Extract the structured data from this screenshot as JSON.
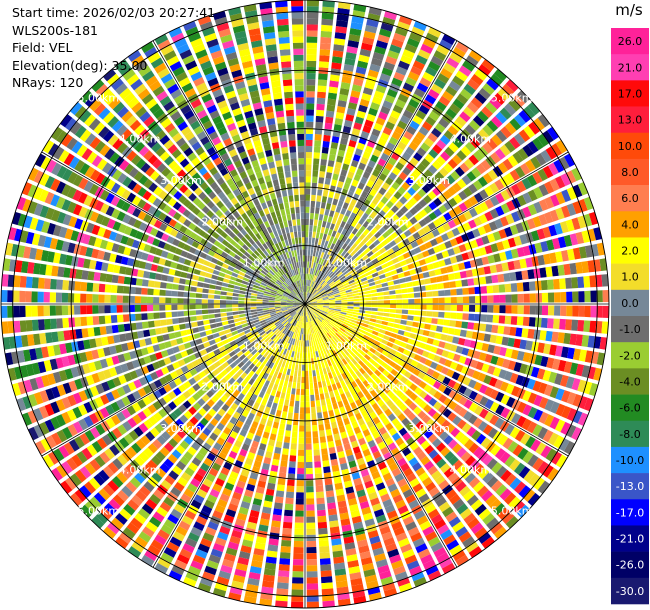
{
  "header": {
    "start_time": "Start time: 2026/02/03 20:27:41",
    "instrument": "WLS200s-181",
    "field": "Field: VEL",
    "elevation": "Elevation(deg): 35.00",
    "nrays": "NRays: 120"
  },
  "chart_data": {
    "type": "heatmap",
    "projection": "polar",
    "title": "",
    "field": "VEL",
    "n_rays": 120,
    "range_rings_km": [
      1.0,
      2.0,
      3.0,
      4.0,
      5.0
    ],
    "ring_labels": [
      "1.00km",
      "2.00km",
      "3.00km",
      "4.00km",
      "5.00km"
    ],
    "max_range_km": 5.2,
    "azimuth_lines_deg": [
      0,
      30,
      60,
      90,
      120,
      150,
      180,
      210,
      240,
      270,
      300,
      330
    ],
    "colorbar": {
      "unit": "m/s",
      "ticks": [
        "26.0",
        "21.0",
        "17.0",
        "13.0",
        "10.0",
        "8.0",
        "6.0",
        "4.0",
        "2.0",
        "1.0",
        "0.0",
        "-1.0",
        "-2.0",
        "-4.0",
        "-6.0",
        "-8.0",
        "-10.0",
        "-13.0",
        "-17.0",
        "-21.0",
        "-26.0",
        "-30.0"
      ],
      "bins": [
        {
          "min": 26,
          "max": 30,
          "color": "#ff2299"
        },
        {
          "min": 21,
          "max": 26,
          "color": "#ff3fb2"
        },
        {
          "min": 17,
          "max": 21,
          "color": "#ff0a0a"
        },
        {
          "min": 13,
          "max": 17,
          "color": "#ff1e3c"
        },
        {
          "min": 10,
          "max": 13,
          "color": "#ff4a0a"
        },
        {
          "min": 8,
          "max": 10,
          "color": "#ff5a28"
        },
        {
          "min": 6,
          "max": 8,
          "color": "#ff7e50"
        },
        {
          "min": 4,
          "max": 6,
          "color": "#ffa000"
        },
        {
          "min": 2,
          "max": 4,
          "color": "#ffff00"
        },
        {
          "min": 1,
          "max": 2,
          "color": "#f3dd2a"
        },
        {
          "min": 0,
          "max": 1,
          "color": "#768898"
        },
        {
          "min": -1,
          "max": 0,
          "color": "#6e6e6e"
        },
        {
          "min": -2,
          "max": -1,
          "color": "#9acd32"
        },
        {
          "min": -4,
          "max": -2,
          "color": "#6b8e23"
        },
        {
          "min": -6,
          "max": -4,
          "color": "#228b22"
        },
        {
          "min": -8,
          "max": -6,
          "color": "#2e8b57"
        },
        {
          "min": -10,
          "max": -8,
          "color": "#1e90ff"
        },
        {
          "min": -13,
          "max": -10,
          "color": "#3a56c8"
        },
        {
          "min": -17,
          "max": -13,
          "color": "#0000ff"
        },
        {
          "min": -21,
          "max": -17,
          "color": "#00008b"
        },
        {
          "min": -26,
          "max": -21,
          "color": "#000066"
        },
        {
          "min": -30,
          "max": -26,
          "color": "#191970"
        }
      ]
    }
  }
}
